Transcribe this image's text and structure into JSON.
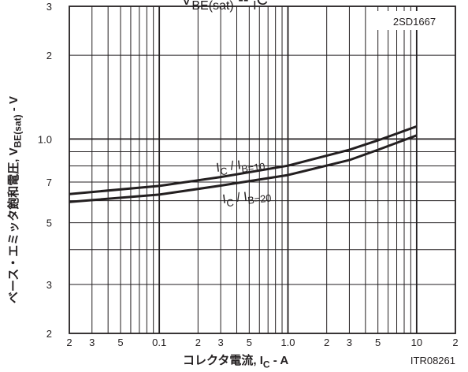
{
  "chart_data": {
    "type": "line",
    "title": [
      "V",
      "BE(sat)",
      " -- ",
      "I",
      "C"
    ],
    "part_number": "2SD1667",
    "figure_code": "ITR08261",
    "x_label": [
      "コレクタ電流, I",
      "C",
      " - A"
    ],
    "y_label": [
      "ベース・エミッタ飽和電圧, V",
      "BE(sat)",
      " - V"
    ],
    "x_log": true,
    "y_log": true,
    "grid": true,
    "xlim": [
      0.02,
      20
    ],
    "ylim": [
      0.2,
      3
    ],
    "xticks": [
      {
        "value": 0.02,
        "label": "2"
      },
      {
        "value": 0.03,
        "label": "3"
      },
      {
        "value": 0.05,
        "label": "5"
      },
      0.1,
      {
        "value": 0.2,
        "label": "2"
      },
      {
        "value": 0.3,
        "label": "3"
      },
      {
        "value": 0.5,
        "label": "5"
      },
      {
        "value": 1,
        "label": "1.0"
      },
      {
        "value": 2,
        "label": "2"
      },
      {
        "value": 3,
        "label": "3"
      },
      {
        "value": 5,
        "label": "5"
      },
      10,
      {
        "value": 20,
        "label": "2"
      }
    ],
    "yticks": [
      {
        "value": 0.2,
        "label": "2"
      },
      {
        "value": 0.3,
        "label": "3"
      },
      {
        "value": 0.5,
        "label": "5"
      },
      {
        "value": 0.7,
        "label": "7"
      },
      {
        "value": 1,
        "label": "1.0"
      },
      2,
      3
    ],
    "x_minor_grid": [
      0.04,
      0.06,
      0.07,
      0.08,
      0.09,
      0.4,
      0.6,
      0.7,
      0.8,
      0.9,
      4,
      6,
      7,
      8,
      9
    ],
    "y_minor_grid": [
      0.4,
      0.6,
      0.8,
      0.9
    ],
    "x": [
      0.02,
      0.1,
      0.3,
      1,
      3,
      5,
      10
    ],
    "series": [
      {
        "name": [
          "I",
          "C",
          " / I",
          "B=10"
        ],
        "color": "#231f20",
        "values": [
          0.634,
          0.678,
          0.73,
          0.802,
          0.914,
          0.989,
          1.11
        ]
      },
      {
        "name": [
          "I",
          "C",
          " / I",
          "B=20"
        ],
        "color": "#231f20",
        "values": [
          0.594,
          0.631,
          0.68,
          0.742,
          0.84,
          0.914,
          1.03
        ]
      }
    ]
  }
}
